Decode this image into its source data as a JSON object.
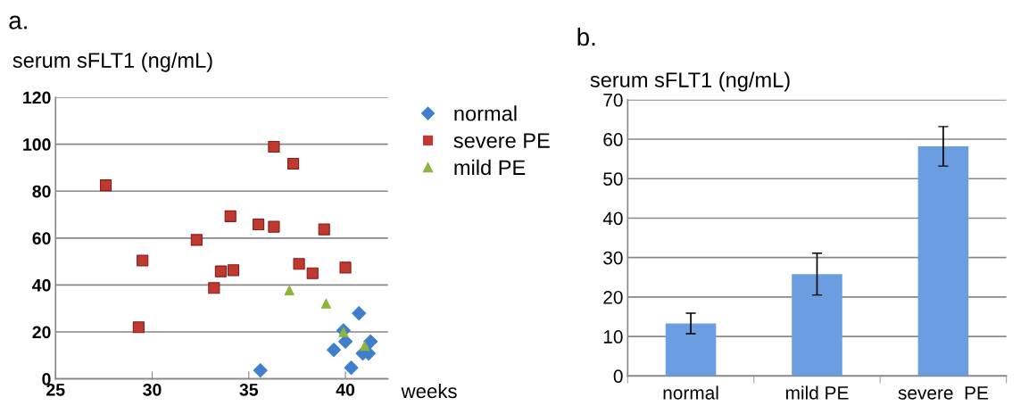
{
  "chart_data": [
    {
      "type": "scatter",
      "title": "a.",
      "ylabel": "serum sFLT1 (ng/mL)",
      "xlabel": "weeks",
      "xlim": [
        25,
        42.2
      ],
      "xticks": [
        25,
        30,
        35,
        40
      ],
      "ylim": [
        0,
        120
      ],
      "yticks": [
        0,
        20,
        40,
        60,
        80,
        100,
        120
      ],
      "grid": "y",
      "legend": "right",
      "series": [
        {
          "name": "normal",
          "color": "#3f7fcc",
          "marker": "diamond",
          "x": [
            35.6,
            40.7,
            39.9,
            40.0,
            39.4,
            41.3,
            40.3,
            40.9,
            41.2
          ],
          "values": [
            3.6,
            27.9,
            20.6,
            15.9,
            12.3,
            15.9,
            4.7,
            10.8,
            10.8
          ]
        },
        {
          "name": "severe PE",
          "color": "#c0392f",
          "marker": "square",
          "x": [
            27.6,
            29.5,
            29.3,
            32.3,
            33.55,
            34.2,
            33.2,
            34.05,
            35.5,
            36.3,
            36.3,
            37.3,
            38.9,
            37.6,
            38.3,
            40.0
          ],
          "values": [
            82.5,
            50.4,
            22,
            59.2,
            45.8,
            46.3,
            38.7,
            69.3,
            65.8,
            64.8,
            98.9,
            91.7,
            63.7,
            49,
            45,
            47.4
          ]
        },
        {
          "name": "mild PE",
          "color": "#8db53c",
          "marker": "triangle",
          "x": [
            37.1,
            39.0,
            39.9,
            41.0
          ],
          "values": [
            37.7,
            32.1,
            19.9,
            14
          ]
        }
      ]
    },
    {
      "type": "bar",
      "title": "b.",
      "ylabel": "serum sFLT1 (ng/mL)",
      "categories": [
        "normal",
        "mild PE",
        "severe  PE"
      ],
      "values": [
        13.3,
        25.8,
        58.2
      ],
      "errors": [
        2.6,
        5.3,
        5.0
      ],
      "color": "#6a9ee0",
      "ylim": [
        0,
        70
      ],
      "yticks": [
        0,
        10,
        20,
        30,
        40,
        50,
        60,
        70
      ],
      "grid": "y"
    }
  ]
}
